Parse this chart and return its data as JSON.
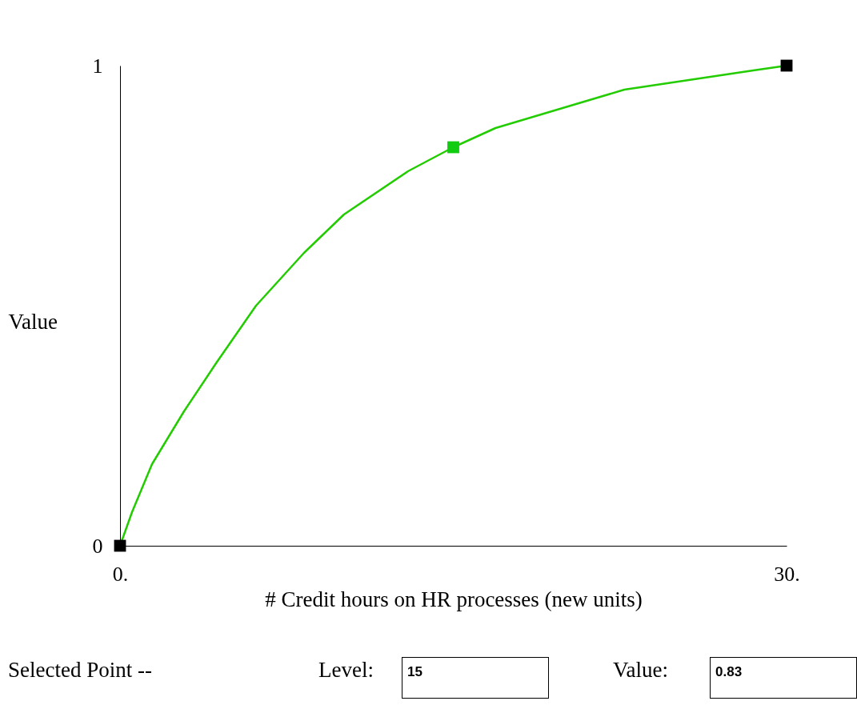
{
  "chart_data": {
    "type": "line",
    "xlabel": "# Credit hours on HR processes (new units)",
    "ylabel": "Value",
    "xlim": [
      0,
      30
    ],
    "ylim": [
      0,
      1
    ],
    "xticks": [
      {
        "value": 0,
        "label": "0."
      },
      {
        "value": 30,
        "label": "30."
      }
    ],
    "yticks": [
      0,
      1
    ],
    "grid": false,
    "legend": false,
    "series": [
      {
        "type": "line",
        "color": "#22cc00",
        "marker": "none",
        "line_style": "solid",
        "x": [
          0,
          0.54,
          1.44,
          2.88,
          4.32,
          6.12,
          8.28,
          10.08,
          12.96,
          15,
          16.9,
          19.8,
          22.7,
          25.6,
          28.5,
          30
        ],
        "values": [
          0,
          0.07,
          0.17,
          0.28,
          0.38,
          0.5,
          0.61,
          0.69,
          0.78,
          0.83,
          0.87,
          0.91,
          0.95,
          0.97,
          0.99,
          1
        ]
      },
      {
        "type": "scatter",
        "marker": "square",
        "x": [
          0,
          15,
          30
        ],
        "values": [
          0,
          0.83,
          1
        ],
        "colors": [
          "#000000",
          "#11cc11",
          "#000000"
        ]
      }
    ],
    "annotations": [
      "Selected Point --",
      "Level:",
      "15",
      "Value:",
      "0.83"
    ]
  }
}
